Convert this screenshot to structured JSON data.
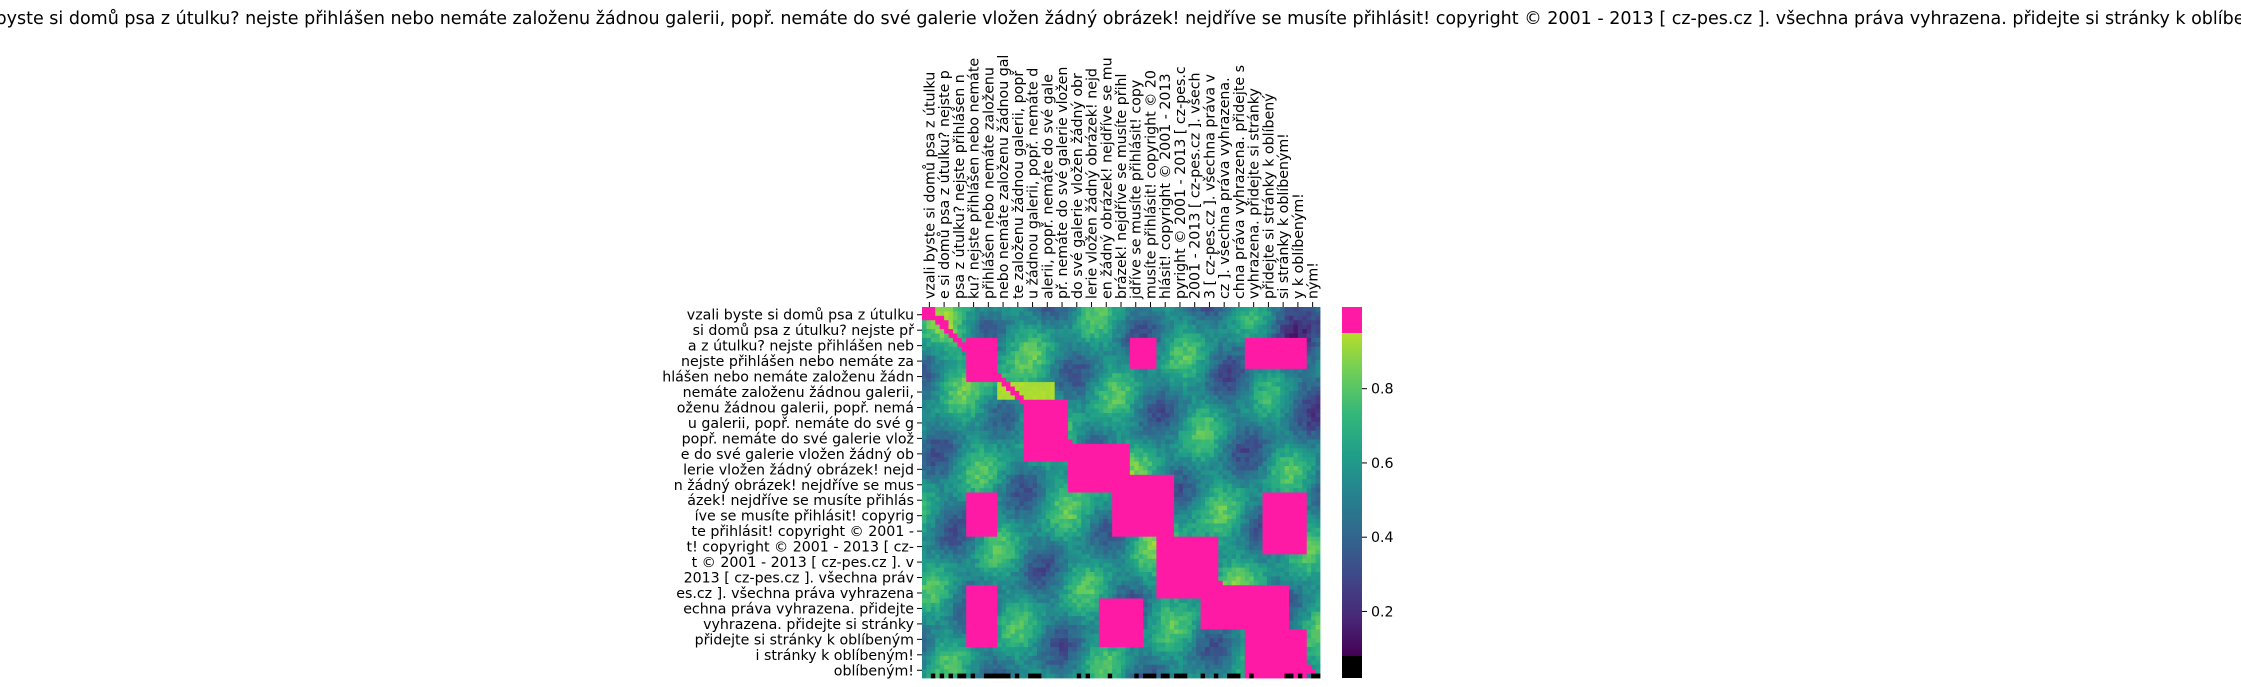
{
  "chart_data": {
    "type": "heatmap",
    "title": "vzali byste si domů psa z útulku? nejste přihlášen nebo nemáte založenu žádnou galerii, popř. nemáte do své galerie vložen žádný obrázek! nejdříve se musíte přihlásit! copyright © 2001 - 2013 [ cz-pes.cz ]. všechna práva vyhrazena. přidejte si stránky k oblíbeným!",
    "x_tick_labels": [
      "vzali byste si domů psa z útulku",
      "e si domů psa z útulku? nejste p",
      "psa z útulku? nejste přihlášen n",
      "ku? nejste přihlášen nebo nemáte",
      "přihlášen nebo nemáte založenu",
      "nebo nemáte založenu žádnou gal",
      "te založenu žádnou galerii, popř",
      "u žádnou galerii, popř. nemáte d",
      "alerii, popř. nemáte do své gale",
      "př. nemáte do své galerie vložen",
      "do své galerie vložen žádný obr",
      "lerie vložen žádný obrázek! nejd",
      "en žádný obrázek! nejdříve se mu",
      "brázek! nejdříve se musíte přihl",
      "jdříve se musíte přihlásit! copy",
      "musíte přihlásit! copyright © 20",
      "hlásit! copyright © 2001 - 2013",
      "pyright © 2001 - 2013 [ cz-pes.c",
      "2001 - 2013 [ cz-pes.cz ]. všech",
      "3 [ cz-pes.cz ]. všechna práva v",
      "cz ]. všechna práva vyhrazena.",
      "chna práva vyhrazena. přidejte s",
      "vyhrazena. přidejte si stránky",
      "přidejte si stránky k oblíbený",
      "si stránky k oblíbeným!",
      "y k oblíbeným!",
      "ným!"
    ],
    "y_tick_labels": [
      "vzali byste si domů psa z útulku",
      "si domů psa z útulku? nejste př",
      "a z útulku? nejste přihlášen neb",
      "nejste přihlášen nebo nemáte za",
      "hlášen nebo nemáte založenu žádn",
      "nemáte založenu žádnou galerii,",
      "oženu žádnou galerii, popř. nemá",
      "u galerii, popř. nemáte do své g",
      "popř. nemáte do své galerie vlož",
      "e do své galerie vložen žádný ob",
      "lerie vložen žádný obrázek! nejd",
      "n žádný obrázek! nejdříve se mus",
      "ázek! nejdříve se musíte přihlás",
      "íve se musíte přihlásit! copyrig",
      "te přihlásit! copyright © 2001 -",
      "t! copyright © 2001 - 2013 [ cz-",
      "t © 2001 - 2013 [ cz-pes.cz ]. v",
      "2013 [ cz-pes.cz ]. všechna práv",
      "es.cz ]. všechna práva vyhrazena",
      "echna práva vyhrazena. přidejte",
      "vyhrazena. přidejte si stránky",
      "přidejte si stránky k oblíbeným",
      "i stránky k oblíbeným!",
      "oblíbeným!"
    ],
    "colorbar": {
      "ticks": [
        "0.2",
        "0.4",
        "0.6",
        "0.8"
      ],
      "range": [
        0.08,
        1.0
      ],
      "colormap": "viridis",
      "under_color": "#000000",
      "over_color": "#ff1aa6"
    },
    "values_description_blocks": [
      {
        "x": [
          0,
          1
        ],
        "y": [
          0,
          1
        ],
        "value": 1.0
      },
      {
        "x": [
          3,
          5
        ],
        "y": [
          2,
          5
        ],
        "value": 1.0
      },
      {
        "x": [
          14,
          16
        ],
        "y": [
          2,
          4
        ],
        "value": 1.0
      },
      {
        "x": [
          5,
          9
        ],
        "y": [
          5,
          6
        ],
        "value": 0.95
      },
      {
        "x": [
          7,
          10
        ],
        "y": [
          6,
          10
        ],
        "value": 1.0
      },
      {
        "x": [
          10,
          14
        ],
        "y": [
          9,
          12
        ],
        "value": 1.0
      },
      {
        "x": [
          13,
          17
        ],
        "y": [
          11,
          15
        ],
        "value": 1.0
      },
      {
        "x": [
          3,
          5
        ],
        "y": [
          12,
          15
        ],
        "value": 1.0
      },
      {
        "x": [
          16,
          20
        ],
        "y": [
          15,
          19
        ],
        "value": 1.0
      },
      {
        "x": [
          19,
          25
        ],
        "y": [
          18,
          21
        ],
        "value": 1.0
      },
      {
        "x": [
          22,
          26
        ],
        "y": [
          21,
          24
        ],
        "value": 1.0
      },
      {
        "x": [
          3,
          5
        ],
        "y": [
          18,
          22
        ],
        "value": 1.0
      },
      {
        "x": [
          12,
          15
        ],
        "y": [
          19,
          22
        ],
        "value": 1.0
      },
      {
        "x": [
          22,
          26
        ],
        "y": [
          2,
          4
        ],
        "value": 1.0
      },
      {
        "x": [
          23,
          26
        ],
        "y": [
          12,
          16
        ],
        "value": 1.0
      }
    ]
  }
}
